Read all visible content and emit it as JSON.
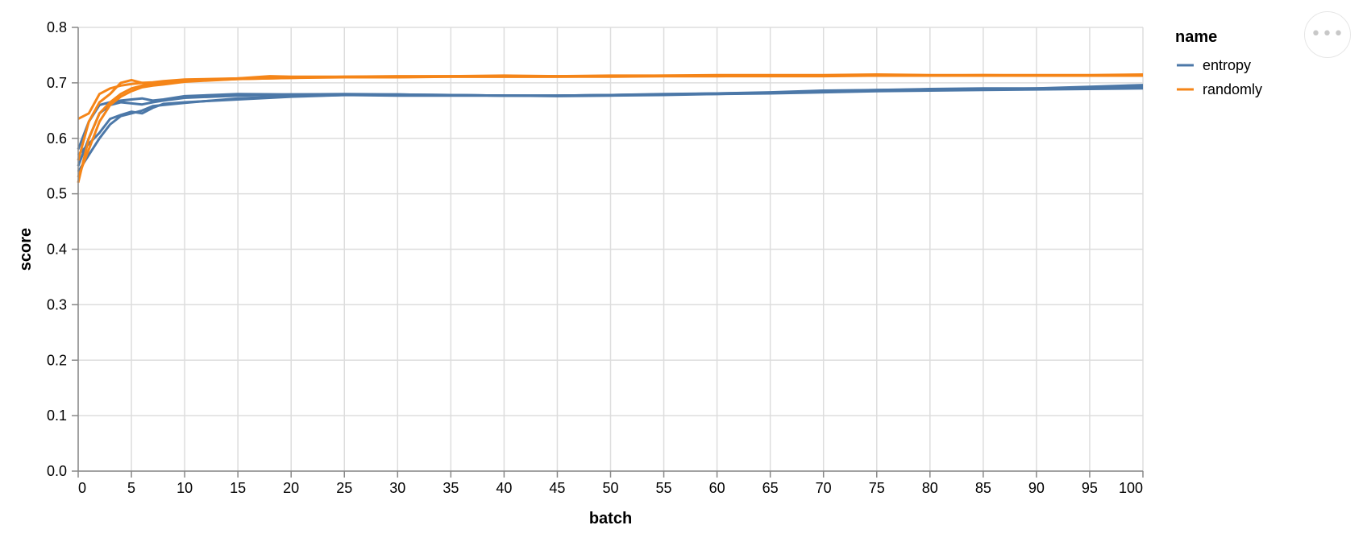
{
  "actions_menu": {
    "icon": "more-horizontal-icon",
    "glyph": "•••"
  },
  "chart_data": {
    "type": "line",
    "xlabel": "batch",
    "ylabel": "score",
    "xlim": [
      0,
      100
    ],
    "ylim": [
      0,
      0.8
    ],
    "x_ticks": [
      0,
      5,
      10,
      15,
      20,
      25,
      30,
      35,
      40,
      45,
      50,
      55,
      60,
      65,
      70,
      75,
      80,
      85,
      90,
      95,
      100
    ],
    "y_ticks": [
      0.0,
      0.1,
      0.2,
      0.3,
      0.4,
      0.5,
      0.6,
      0.7,
      0.8
    ],
    "x_tick_labels": [
      "0",
      "5",
      "10",
      "15",
      "20",
      "25",
      "30",
      "35",
      "40",
      "45",
      "50",
      "55",
      "60",
      "65",
      "70",
      "75",
      "80",
      "85",
      "90",
      "95",
      "100"
    ],
    "y_tick_labels": [
      "0.0",
      "0.1",
      "0.2",
      "0.3",
      "0.4",
      "0.5",
      "0.6",
      "0.7",
      "0.8"
    ],
    "grid": true,
    "legend": {
      "title": "name",
      "placement": "right",
      "entries": [
        {
          "label": "entropy",
          "color": "#4c78a8"
        },
        {
          "label": "randomly",
          "color": "#f58518"
        }
      ]
    },
    "series": [
      {
        "name": "entropy",
        "color": "#4c78a8",
        "points": [
          [
            0,
            0.58
          ],
          [
            1,
            0.63
          ],
          [
            2,
            0.66
          ],
          [
            3,
            0.665
          ],
          [
            4,
            0.668
          ],
          [
            5,
            0.67
          ],
          [
            6,
            0.672
          ],
          [
            7,
            0.668
          ],
          [
            8,
            0.67
          ],
          [
            10,
            0.676
          ],
          [
            15,
            0.68
          ],
          [
            20,
            0.679
          ],
          [
            25,
            0.679
          ],
          [
            30,
            0.678
          ],
          [
            35,
            0.678
          ],
          [
            40,
            0.677
          ],
          [
            45,
            0.677
          ],
          [
            50,
            0.678
          ],
          [
            55,
            0.679
          ],
          [
            60,
            0.681
          ],
          [
            65,
            0.683
          ],
          [
            70,
            0.686
          ],
          [
            75,
            0.687
          ],
          [
            80,
            0.689
          ],
          [
            85,
            0.69
          ],
          [
            90,
            0.69
          ],
          [
            95,
            0.693
          ],
          [
            100,
            0.696
          ]
        ]
      },
      {
        "name": "entropy",
        "color": "#4c78a8",
        "points": [
          [
            0,
            0.55
          ],
          [
            1,
            0.6
          ],
          [
            2,
            0.645
          ],
          [
            3,
            0.66
          ],
          [
            4,
            0.665
          ],
          [
            5,
            0.663
          ],
          [
            6,
            0.661
          ],
          [
            7,
            0.665
          ],
          [
            8,
            0.668
          ],
          [
            10,
            0.673
          ],
          [
            15,
            0.677
          ],
          [
            20,
            0.679
          ],
          [
            25,
            0.68
          ],
          [
            30,
            0.679
          ],
          [
            35,
            0.678
          ],
          [
            40,
            0.677
          ],
          [
            45,
            0.677
          ],
          [
            50,
            0.678
          ],
          [
            55,
            0.68
          ],
          [
            60,
            0.681
          ],
          [
            65,
            0.682
          ],
          [
            70,
            0.685
          ],
          [
            75,
            0.687
          ],
          [
            80,
            0.688
          ],
          [
            85,
            0.689
          ],
          [
            90,
            0.69
          ],
          [
            95,
            0.691
          ],
          [
            100,
            0.693
          ]
        ]
      },
      {
        "name": "entropy",
        "color": "#4c78a8",
        "points": [
          [
            0,
            0.54
          ],
          [
            1,
            0.57
          ],
          [
            2,
            0.6
          ],
          [
            3,
            0.625
          ],
          [
            4,
            0.64
          ],
          [
            5,
            0.645
          ],
          [
            6,
            0.65
          ],
          [
            7,
            0.658
          ],
          [
            8,
            0.66
          ],
          [
            10,
            0.664
          ],
          [
            15,
            0.672
          ],
          [
            20,
            0.676
          ],
          [
            25,
            0.678
          ],
          [
            30,
            0.679
          ],
          [
            35,
            0.678
          ],
          [
            40,
            0.677
          ],
          [
            45,
            0.677
          ],
          [
            50,
            0.678
          ],
          [
            55,
            0.679
          ],
          [
            60,
            0.68
          ],
          [
            65,
            0.682
          ],
          [
            70,
            0.684
          ],
          [
            75,
            0.686
          ],
          [
            80,
            0.687
          ],
          [
            85,
            0.688
          ],
          [
            90,
            0.689
          ],
          [
            95,
            0.69
          ],
          [
            100,
            0.692
          ]
        ]
      },
      {
        "name": "entropy",
        "color": "#4c78a8",
        "points": [
          [
            0,
            0.57
          ],
          [
            1,
            0.59
          ],
          [
            2,
            0.61
          ],
          [
            3,
            0.635
          ],
          [
            4,
            0.642
          ],
          [
            5,
            0.648
          ],
          [
            6,
            0.645
          ],
          [
            7,
            0.655
          ],
          [
            8,
            0.662
          ],
          [
            10,
            0.665
          ],
          [
            15,
            0.67
          ],
          [
            20,
            0.675
          ],
          [
            25,
            0.678
          ],
          [
            30,
            0.677
          ],
          [
            35,
            0.677
          ],
          [
            40,
            0.677
          ],
          [
            45,
            0.676
          ],
          [
            50,
            0.677
          ],
          [
            55,
            0.678
          ],
          [
            60,
            0.68
          ],
          [
            65,
            0.681
          ],
          [
            70,
            0.683
          ],
          [
            75,
            0.685
          ],
          [
            80,
            0.686
          ],
          [
            85,
            0.687
          ],
          [
            90,
            0.688
          ],
          [
            95,
            0.689
          ],
          [
            100,
            0.69
          ]
        ]
      },
      {
        "name": "randomly",
        "color": "#f58518",
        "points": [
          [
            0,
            0.635
          ],
          [
            1,
            0.645
          ],
          [
            2,
            0.68
          ],
          [
            3,
            0.69
          ],
          [
            4,
            0.695
          ],
          [
            5,
            0.698
          ],
          [
            6,
            0.7
          ],
          [
            7,
            0.701
          ],
          [
            8,
            0.703
          ],
          [
            10,
            0.706
          ],
          [
            15,
            0.708
          ],
          [
            18,
            0.712
          ],
          [
            20,
            0.711
          ],
          [
            25,
            0.711
          ],
          [
            30,
            0.712
          ],
          [
            35,
            0.712
          ],
          [
            40,
            0.713
          ],
          [
            45,
            0.712
          ],
          [
            50,
            0.713
          ],
          [
            55,
            0.713
          ],
          [
            60,
            0.714
          ],
          [
            65,
            0.714
          ],
          [
            70,
            0.714
          ],
          [
            75,
            0.715
          ],
          [
            80,
            0.714
          ],
          [
            85,
            0.714
          ],
          [
            90,
            0.714
          ],
          [
            95,
            0.714
          ],
          [
            100,
            0.715
          ]
        ]
      },
      {
        "name": "randomly",
        "color": "#f58518",
        "points": [
          [
            0,
            0.56
          ],
          [
            1,
            0.63
          ],
          [
            2,
            0.665
          ],
          [
            3,
            0.68
          ],
          [
            4,
            0.7
          ],
          [
            5,
            0.705
          ],
          [
            6,
            0.7
          ],
          [
            7,
            0.698
          ],
          [
            8,
            0.7
          ],
          [
            10,
            0.703
          ],
          [
            15,
            0.707
          ],
          [
            20,
            0.709
          ],
          [
            25,
            0.711
          ],
          [
            30,
            0.711
          ],
          [
            35,
            0.712
          ],
          [
            40,
            0.712
          ],
          [
            45,
            0.712
          ],
          [
            50,
            0.712
          ],
          [
            55,
            0.713
          ],
          [
            60,
            0.713
          ],
          [
            65,
            0.713
          ],
          [
            70,
            0.713
          ],
          [
            75,
            0.713
          ],
          [
            80,
            0.713
          ],
          [
            85,
            0.714
          ],
          [
            90,
            0.713
          ],
          [
            95,
            0.713
          ],
          [
            100,
            0.713
          ]
        ]
      },
      {
        "name": "randomly",
        "color": "#f58518",
        "points": [
          [
            0,
            0.52
          ],
          [
            1,
            0.6
          ],
          [
            2,
            0.645
          ],
          [
            3,
            0.665
          ],
          [
            4,
            0.68
          ],
          [
            5,
            0.69
          ],
          [
            6,
            0.695
          ],
          [
            7,
            0.697
          ],
          [
            8,
            0.7
          ],
          [
            10,
            0.704
          ],
          [
            15,
            0.708
          ],
          [
            20,
            0.71
          ],
          [
            25,
            0.71
          ],
          [
            30,
            0.711
          ],
          [
            35,
            0.711
          ],
          [
            40,
            0.711
          ],
          [
            45,
            0.711
          ],
          [
            50,
            0.712
          ],
          [
            55,
            0.712
          ],
          [
            60,
            0.712
          ],
          [
            65,
            0.713
          ],
          [
            70,
            0.713
          ],
          [
            75,
            0.713
          ],
          [
            80,
            0.713
          ],
          [
            85,
            0.713
          ],
          [
            90,
            0.713
          ],
          [
            95,
            0.713
          ],
          [
            100,
            0.714
          ]
        ]
      },
      {
        "name": "randomly",
        "color": "#f58518",
        "points": [
          [
            0,
            0.53
          ],
          [
            1,
            0.58
          ],
          [
            2,
            0.63
          ],
          [
            3,
            0.66
          ],
          [
            4,
            0.675
          ],
          [
            5,
            0.685
          ],
          [
            6,
            0.692
          ],
          [
            7,
            0.695
          ],
          [
            8,
            0.697
          ],
          [
            10,
            0.702
          ],
          [
            15,
            0.707
          ],
          [
            20,
            0.709
          ],
          [
            25,
            0.71
          ],
          [
            30,
            0.71
          ],
          [
            35,
            0.711
          ],
          [
            40,
            0.711
          ],
          [
            45,
            0.711
          ],
          [
            50,
            0.711
          ],
          [
            55,
            0.712
          ],
          [
            60,
            0.712
          ],
          [
            65,
            0.712
          ],
          [
            70,
            0.712
          ],
          [
            75,
            0.713
          ],
          [
            80,
            0.713
          ],
          [
            85,
            0.713
          ],
          [
            90,
            0.713
          ],
          [
            95,
            0.713
          ],
          [
            100,
            0.713
          ]
        ]
      }
    ]
  }
}
